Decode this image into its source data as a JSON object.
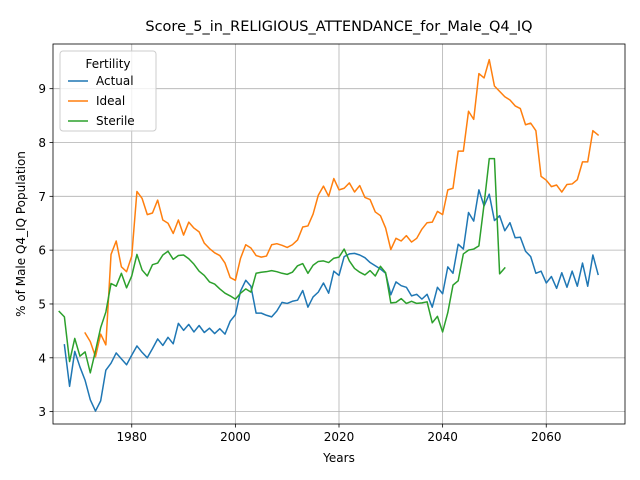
{
  "chart_data": {
    "type": "line",
    "title": "Score_5_in_RELIGIOUS_ATTENDANCE_for_Male_Q4_IQ",
    "xlabel": "Years",
    "ylabel": "% of Male Q4_IQ Population",
    "xlim": [
      1964.8,
      2075.2
    ],
    "ylim": [
      2.77,
      9.83
    ],
    "xticks": [
      1980,
      2000,
      2020,
      2040,
      2060
    ],
    "yticks": [
      3,
      4,
      5,
      6,
      7,
      8,
      9
    ],
    "grid": true,
    "legend": {
      "title": "Fertility",
      "placement": "top-left"
    },
    "series": [
      {
        "name": "Actual",
        "color": "#1f77b4",
        "points": [
          [
            1967,
            4.24
          ],
          [
            1968,
            3.47
          ],
          [
            1969,
            4.12
          ],
          [
            1970,
            3.83
          ],
          [
            1971,
            3.58
          ],
          [
            1972,
            3.22
          ],
          [
            1973,
            3.01
          ],
          [
            1974,
            3.2
          ],
          [
            1975,
            3.77
          ],
          [
            1976,
            3.9
          ],
          [
            1977,
            4.09
          ],
          [
            1978,
            3.98
          ],
          [
            1979,
            3.87
          ],
          [
            1980,
            4.05
          ],
          [
            1981,
            4.22
          ],
          [
            1982,
            4.1
          ],
          [
            1983,
            4.0
          ],
          [
            1984,
            4.17
          ],
          [
            1985,
            4.35
          ],
          [
            1986,
            4.23
          ],
          [
            1987,
            4.38
          ],
          [
            1988,
            4.26
          ],
          [
            1989,
            4.64
          ],
          [
            1990,
            4.51
          ],
          [
            1991,
            4.62
          ],
          [
            1992,
            4.48
          ],
          [
            1993,
            4.6
          ],
          [
            1994,
            4.47
          ],
          [
            1995,
            4.55
          ],
          [
            1996,
            4.45
          ],
          [
            1997,
            4.54
          ],
          [
            1998,
            4.44
          ],
          [
            1999,
            4.68
          ],
          [
            2000,
            4.8
          ],
          [
            2001,
            5.24
          ],
          [
            2002,
            5.44
          ],
          [
            2003,
            5.33
          ],
          [
            2004,
            4.83
          ],
          [
            2005,
            4.83
          ],
          [
            2006,
            4.79
          ],
          [
            2007,
            4.76
          ],
          [
            2008,
            4.87
          ],
          [
            2009,
            5.03
          ],
          [
            2010,
            5.01
          ],
          [
            2011,
            5.05
          ],
          [
            2012,
            5.07
          ],
          [
            2013,
            5.25
          ],
          [
            2014,
            4.94
          ],
          [
            2015,
            5.13
          ],
          [
            2016,
            5.22
          ],
          [
            2017,
            5.39
          ],
          [
            2018,
            5.2
          ],
          [
            2019,
            5.61
          ],
          [
            2020,
            5.53
          ],
          [
            2021,
            5.88
          ],
          [
            2022,
            5.93
          ],
          [
            2023,
            5.94
          ],
          [
            2024,
            5.91
          ],
          [
            2025,
            5.86
          ],
          [
            2026,
            5.77
          ],
          [
            2027,
            5.71
          ],
          [
            2028,
            5.65
          ],
          [
            2029,
            5.57
          ],
          [
            2030,
            5.17
          ],
          [
            2031,
            5.41
          ],
          [
            2032,
            5.34
          ],
          [
            2033,
            5.31
          ],
          [
            2034,
            5.15
          ],
          [
            2035,
            5.18
          ],
          [
            2036,
            5.09
          ],
          [
            2037,
            5.18
          ],
          [
            2038,
            4.94
          ],
          [
            2039,
            5.31
          ],
          [
            2040,
            5.19
          ],
          [
            2041,
            5.69
          ],
          [
            2042,
            5.57
          ],
          [
            2043,
            6.11
          ],
          [
            2044,
            6.02
          ],
          [
            2045,
            6.7
          ],
          [
            2046,
            6.54
          ],
          [
            2047,
            7.12
          ],
          [
            2048,
            6.82
          ],
          [
            2049,
            7.04
          ],
          [
            2050,
            6.55
          ],
          [
            2051,
            6.64
          ],
          [
            2052,
            6.36
          ],
          [
            2053,
            6.51
          ],
          [
            2054,
            6.23
          ],
          [
            2055,
            6.24
          ],
          [
            2056,
            5.98
          ],
          [
            2057,
            5.88
          ],
          [
            2058,
            5.57
          ],
          [
            2059,
            5.61
          ],
          [
            2060,
            5.39
          ],
          [
            2061,
            5.51
          ],
          [
            2062,
            5.29
          ],
          [
            2063,
            5.58
          ],
          [
            2064,
            5.31
          ],
          [
            2065,
            5.61
          ],
          [
            2066,
            5.33
          ],
          [
            2067,
            5.76
          ],
          [
            2068,
            5.33
          ],
          [
            2069,
            5.91
          ],
          [
            2070,
            5.55
          ]
        ]
      },
      {
        "name": "Ideal",
        "color": "#ff7f0e",
        "points": [
          [
            1971,
            4.46
          ],
          [
            1972,
            4.3
          ],
          [
            1973,
            4.02
          ],
          [
            1974,
            4.44
          ],
          [
            1975,
            4.24
          ],
          [
            1976,
            5.92
          ],
          [
            1977,
            6.17
          ],
          [
            1978,
            5.69
          ],
          [
            1979,
            5.6
          ],
          [
            1980,
            5.89
          ],
          [
            1981,
            7.09
          ],
          [
            1982,
            6.96
          ],
          [
            1983,
            6.66
          ],
          [
            1984,
            6.69
          ],
          [
            1985,
            6.93
          ],
          [
            1986,
            6.56
          ],
          [
            1987,
            6.5
          ],
          [
            1988,
            6.31
          ],
          [
            1989,
            6.56
          ],
          [
            1990,
            6.28
          ],
          [
            1991,
            6.52
          ],
          [
            1992,
            6.41
          ],
          [
            1993,
            6.34
          ],
          [
            1994,
            6.13
          ],
          [
            1995,
            6.03
          ],
          [
            1996,
            5.95
          ],
          [
            1997,
            5.9
          ],
          [
            1998,
            5.76
          ],
          [
            1999,
            5.49
          ],
          [
            2000,
            5.44
          ],
          [
            2001,
            5.85
          ],
          [
            2002,
            6.1
          ],
          [
            2003,
            6.04
          ],
          [
            2004,
            5.9
          ],
          [
            2005,
            5.87
          ],
          [
            2006,
            5.89
          ],
          [
            2007,
            6.1
          ],
          [
            2008,
            6.12
          ],
          [
            2009,
            6.09
          ],
          [
            2010,
            6.05
          ],
          [
            2011,
            6.1
          ],
          [
            2012,
            6.19
          ],
          [
            2013,
            6.43
          ],
          [
            2014,
            6.45
          ],
          [
            2015,
            6.67
          ],
          [
            2016,
            7.02
          ],
          [
            2017,
            7.19
          ],
          [
            2018,
            7.0
          ],
          [
            2019,
            7.33
          ],
          [
            2020,
            7.12
          ],
          [
            2021,
            7.15
          ],
          [
            2022,
            7.25
          ],
          [
            2023,
            7.08
          ],
          [
            2024,
            7.2
          ],
          [
            2025,
            6.98
          ],
          [
            2026,
            6.94
          ],
          [
            2027,
            6.71
          ],
          [
            2028,
            6.64
          ],
          [
            2029,
            6.41
          ],
          [
            2030,
            6.01
          ],
          [
            2031,
            6.22
          ],
          [
            2032,
            6.17
          ],
          [
            2033,
            6.27
          ],
          [
            2034,
            6.15
          ],
          [
            2035,
            6.22
          ],
          [
            2036,
            6.39
          ],
          [
            2037,
            6.51
          ],
          [
            2038,
            6.52
          ],
          [
            2039,
            6.72
          ],
          [
            2040,
            6.66
          ],
          [
            2041,
            7.12
          ],
          [
            2042,
            7.15
          ],
          [
            2043,
            7.84
          ],
          [
            2044,
            7.84
          ],
          [
            2045,
            8.58
          ],
          [
            2046,
            8.43
          ],
          [
            2047,
            9.28
          ],
          [
            2048,
            9.2
          ],
          [
            2049,
            9.54
          ],
          [
            2050,
            9.05
          ],
          [
            2051,
            8.95
          ],
          [
            2052,
            8.85
          ],
          [
            2053,
            8.79
          ],
          [
            2054,
            8.68
          ],
          [
            2055,
            8.63
          ],
          [
            2056,
            8.33
          ],
          [
            2057,
            8.36
          ],
          [
            2058,
            8.22
          ],
          [
            2059,
            7.37
          ],
          [
            2060,
            7.3
          ],
          [
            2061,
            7.18
          ],
          [
            2062,
            7.21
          ],
          [
            2063,
            7.08
          ],
          [
            2064,
            7.22
          ],
          [
            2065,
            7.23
          ],
          [
            2066,
            7.31
          ],
          [
            2067,
            7.64
          ],
          [
            2068,
            7.64
          ],
          [
            2069,
            8.22
          ],
          [
            2070,
            8.14
          ]
        ]
      },
      {
        "name": "Sterile",
        "color": "#2ca02c",
        "points": [
          [
            1966,
            4.86
          ],
          [
            1967,
            4.76
          ],
          [
            1968,
            3.93
          ],
          [
            1969,
            4.36
          ],
          [
            1970,
            4.03
          ],
          [
            1971,
            4.11
          ],
          [
            1972,
            3.72
          ],
          [
            1973,
            4.13
          ],
          [
            1974,
            4.56
          ],
          [
            1975,
            4.85
          ],
          [
            1976,
            5.38
          ],
          [
            1977,
            5.33
          ],
          [
            1978,
            5.57
          ],
          [
            1979,
            5.3
          ],
          [
            1980,
            5.52
          ],
          [
            1981,
            5.92
          ],
          [
            1982,
            5.63
          ],
          [
            1983,
            5.52
          ],
          [
            1984,
            5.73
          ],
          [
            1985,
            5.76
          ],
          [
            1986,
            5.91
          ],
          [
            1987,
            5.98
          ],
          [
            1988,
            5.83
          ],
          [
            1989,
            5.9
          ],
          [
            1990,
            5.91
          ],
          [
            1991,
            5.84
          ],
          [
            1992,
            5.74
          ],
          [
            1993,
            5.61
          ],
          [
            1994,
            5.53
          ],
          [
            1995,
            5.41
          ],
          [
            1996,
            5.37
          ],
          [
            1997,
            5.28
          ],
          [
            1998,
            5.2
          ],
          [
            1999,
            5.15
          ],
          [
            2000,
            5.09
          ],
          [
            2001,
            5.2
          ],
          [
            2002,
            5.28
          ],
          [
            2003,
            5.22
          ],
          [
            2004,
            5.57
          ],
          [
            2005,
            5.59
          ],
          [
            2006,
            5.6
          ],
          [
            2007,
            5.62
          ],
          [
            2008,
            5.6
          ],
          [
            2009,
            5.57
          ],
          [
            2010,
            5.55
          ],
          [
            2011,
            5.59
          ],
          [
            2012,
            5.71
          ],
          [
            2013,
            5.75
          ],
          [
            2014,
            5.57
          ],
          [
            2015,
            5.72
          ],
          [
            2016,
            5.79
          ],
          [
            2017,
            5.8
          ],
          [
            2018,
            5.77
          ],
          [
            2019,
            5.85
          ],
          [
            2020,
            5.87
          ],
          [
            2021,
            6.02
          ],
          [
            2022,
            5.8
          ],
          [
            2023,
            5.66
          ],
          [
            2024,
            5.59
          ],
          [
            2025,
            5.54
          ],
          [
            2026,
            5.62
          ],
          [
            2027,
            5.52
          ],
          [
            2028,
            5.7
          ],
          [
            2029,
            5.58
          ],
          [
            2030,
            5.02
          ],
          [
            2031,
            5.03
          ],
          [
            2032,
            5.1
          ],
          [
            2033,
            5.01
          ],
          [
            2034,
            5.05
          ],
          [
            2035,
            5.01
          ],
          [
            2036,
            5.02
          ],
          [
            2037,
            5.04
          ],
          [
            2038,
            4.65
          ],
          [
            2039,
            4.77
          ],
          [
            2040,
            4.48
          ],
          [
            2041,
            4.84
          ],
          [
            2042,
            5.35
          ],
          [
            2043,
            5.43
          ],
          [
            2044,
            5.93
          ],
          [
            2045,
            6.0
          ],
          [
            2046,
            6.02
          ],
          [
            2047,
            6.08
          ],
          [
            2048,
            6.85
          ],
          [
            2049,
            7.7
          ],
          [
            2050,
            7.7
          ],
          [
            2051,
            5.56
          ],
          [
            2052,
            5.67
          ]
        ]
      }
    ]
  }
}
